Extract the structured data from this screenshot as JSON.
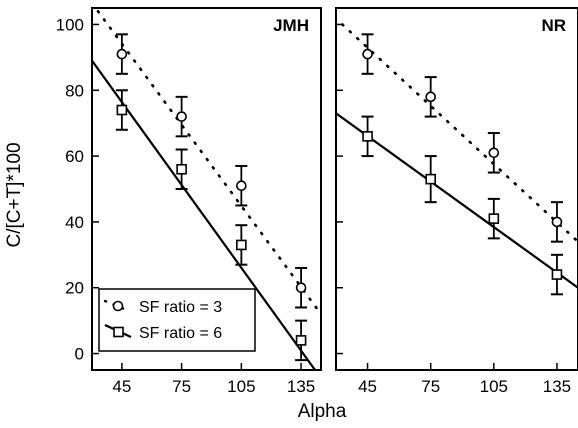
{
  "chart_data": {
    "type": "scatter",
    "ylabel": "C/[C+T]*100",
    "xlabel": "Alpha",
    "x_ticks": [
      "45",
      "75",
      "105",
      "135"
    ],
    "y_ticks": [
      "0",
      "20",
      "40",
      "60",
      "80",
      "100"
    ],
    "xlim": [
      30,
      145
    ],
    "ylim": [
      -5,
      105
    ],
    "grid": false,
    "legend_position": "bottom-left",
    "legend": [
      {
        "label": "SF ratio = 3",
        "marker": "circle",
        "line": "dotted"
      },
      {
        "label": "SF ratio = 6",
        "marker": "square",
        "line": "solid"
      }
    ],
    "panels": [
      {
        "title": "JMH",
        "show_ylabel": true,
        "show_legend": true,
        "series": [
          {
            "marker": "circle",
            "line": "dotted",
            "x": [
              45,
              75,
              105,
              135
            ],
            "y": [
              91,
              72,
              51,
              20
            ],
            "err": [
              6,
              6,
              6,
              6
            ],
            "fit": {
              "x": [
                33,
                145
              ],
              "y": [
                104,
                12
              ]
            }
          },
          {
            "marker": "square",
            "line": "solid",
            "x": [
              45,
              75,
              105,
              135
            ],
            "y": [
              74,
              56,
              33,
              4
            ],
            "err": [
              6,
              6,
              6,
              6
            ],
            "fit": {
              "x": [
                30,
                142
              ],
              "y": [
                89,
                -5
              ]
            }
          }
        ]
      },
      {
        "title": "NR",
        "show_ylabel": false,
        "show_legend": false,
        "series": [
          {
            "marker": "circle",
            "line": "dotted",
            "x": [
              45,
              75,
              105,
              135
            ],
            "y": [
              91,
              78,
              61,
              40
            ],
            "err": [
              6,
              6,
              6,
              6
            ],
            "fit": {
              "x": [
                33,
                145
              ],
              "y": [
                100,
                34
              ]
            }
          },
          {
            "marker": "square",
            "line": "solid",
            "x": [
              45,
              75,
              105,
              135
            ],
            "y": [
              66,
              53,
              41,
              24
            ],
            "err": [
              6,
              7,
              6,
              6
            ],
            "fit": {
              "x": [
                30,
                145
              ],
              "y": [
                73,
                20
              ]
            }
          }
        ]
      }
    ]
  }
}
